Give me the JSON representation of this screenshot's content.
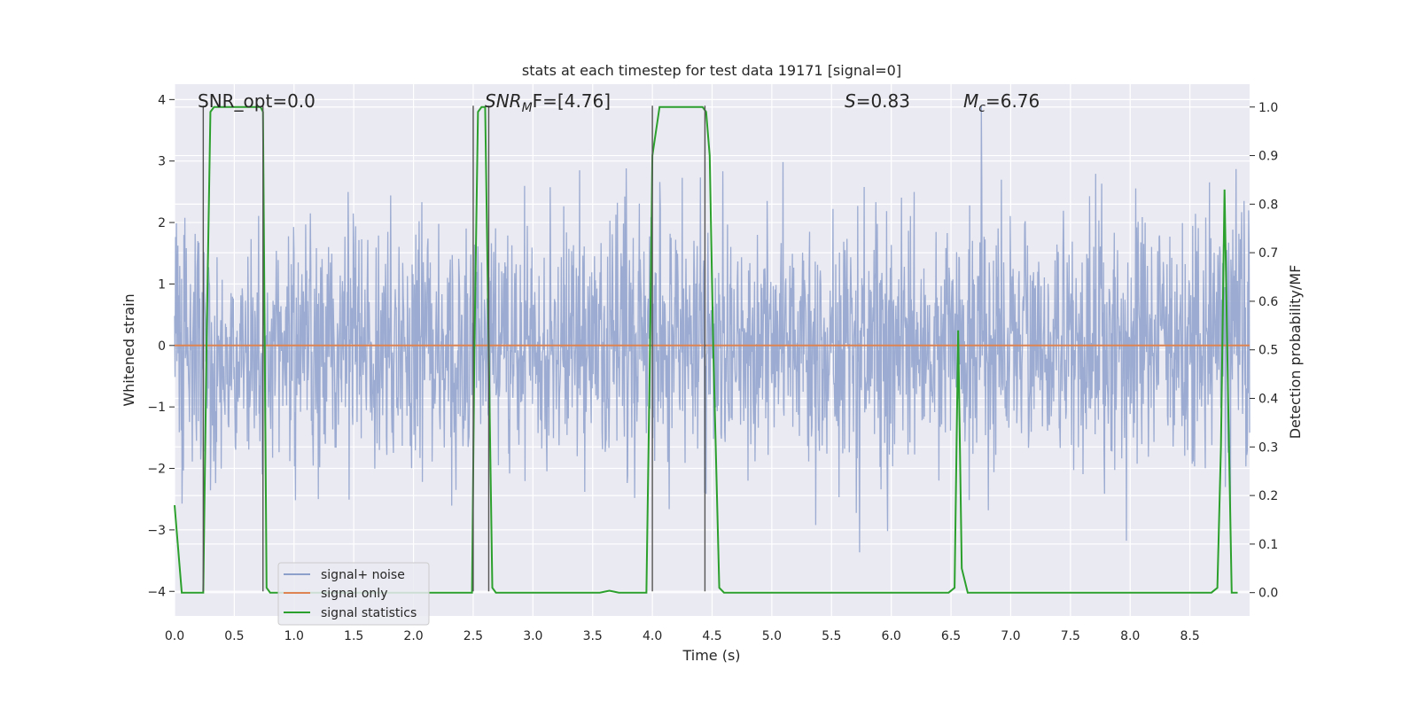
{
  "chart_data": {
    "type": "line",
    "title": "stats at each timestep for test data 19171 [signal=0]",
    "xlabel": "Time (s)",
    "ylabel": "Whitened strain",
    "ylabel_right": "Detection probability/MF",
    "xlim": [
      0.0,
      9.0
    ],
    "ylim": [
      -4.4,
      4.25
    ],
    "ylim_right": [
      -0.048,
      1.047
    ],
    "x_ticks": [
      "0.0",
      "0.5",
      "1.0",
      "1.5",
      "2.0",
      "2.5",
      "3.0",
      "3.5",
      "4.0",
      "4.5",
      "5.0",
      "5.5",
      "6.0",
      "6.5",
      "7.0",
      "7.5",
      "8.0",
      "8.5"
    ],
    "y_ticks": [
      "4",
      "3",
      "2",
      "1",
      "0",
      "−1",
      "−2",
      "−3",
      "−4"
    ],
    "y_right_ticks": [
      "1.0",
      "0.9",
      "0.8",
      "0.7",
      "0.6",
      "0.5",
      "0.4",
      "0.3",
      "0.2",
      "0.1",
      "0.0"
    ],
    "grid": true,
    "legend_position": "lower-left",
    "annotations": {
      "snr_opt": "SNR_opt=0.0",
      "snr_mf_main": "SNR",
      "snr_mf_sub": "M",
      "snr_mf_rest": "F=[4.76]",
      "s_symbol": "S",
      "s_value": "=0.83",
      "mc_symbol": "M",
      "mc_sub": "c",
      "mc_value": "=6.76"
    },
    "series": [
      {
        "name": "signal+ noise",
        "color": "#8da0cb",
        "kind": "noise",
        "sample_rate": 256,
        "envelope_std": 1.0,
        "range": [
          -3.7,
          3.9
        ]
      },
      {
        "name": "signal only",
        "color": "#dd8452",
        "axis": "left",
        "x": [
          0.0,
          9.0
        ],
        "y": [
          0.0,
          0.0
        ]
      },
      {
        "name": "signal statistics",
        "color": "#2ca02c",
        "axis": "right",
        "x": [
          0.0,
          0.06,
          0.24,
          0.27,
          0.3,
          0.33,
          0.72,
          0.74,
          0.77,
          0.8,
          0.85,
          0.9,
          2.49,
          2.51,
          2.54,
          2.57,
          2.6,
          2.63,
          2.66,
          2.69,
          3.56,
          3.64,
          3.72,
          3.95,
          3.98,
          4.0,
          4.06,
          4.42,
          4.45,
          4.48,
          4.51,
          4.56,
          4.6,
          6.48,
          6.53,
          6.56,
          6.59,
          6.64,
          6.7,
          8.68,
          8.73,
          8.76,
          8.79,
          8.82,
          8.85,
          8.9
        ],
        "y": [
          0.18,
          0.0,
          0.0,
          0.55,
          0.99,
          1.0,
          1.0,
          0.99,
          0.01,
          0.0,
          0.0,
          0.0,
          0.0,
          0.5,
          0.99,
          1.0,
          1.0,
          0.5,
          0.01,
          0.0,
          0.0,
          0.004,
          0.0,
          0.0,
          0.5,
          0.9,
          1.0,
          1.0,
          0.99,
          0.9,
          0.5,
          0.01,
          0.0,
          0.0,
          0.01,
          0.54,
          0.05,
          0.0,
          0.0,
          0.0,
          0.01,
          0.3,
          0.83,
          0.4,
          0.0,
          0.0
        ]
      }
    ],
    "vertical_markers": [
      {
        "x": 0.24,
        "y_from": -4.0,
        "y_to": 3.9
      },
      {
        "x": 0.74,
        "y_from": -4.0,
        "y_to": 3.9
      },
      {
        "x": 2.5,
        "y_from": -4.0,
        "y_to": 3.9
      },
      {
        "x": 2.63,
        "y_from": -4.0,
        "y_to": 3.9
      },
      {
        "x": 4.0,
        "y_from": -4.0,
        "y_to": 3.9
      },
      {
        "x": 4.44,
        "y_from": -4.0,
        "y_to": 3.9
      }
    ]
  }
}
